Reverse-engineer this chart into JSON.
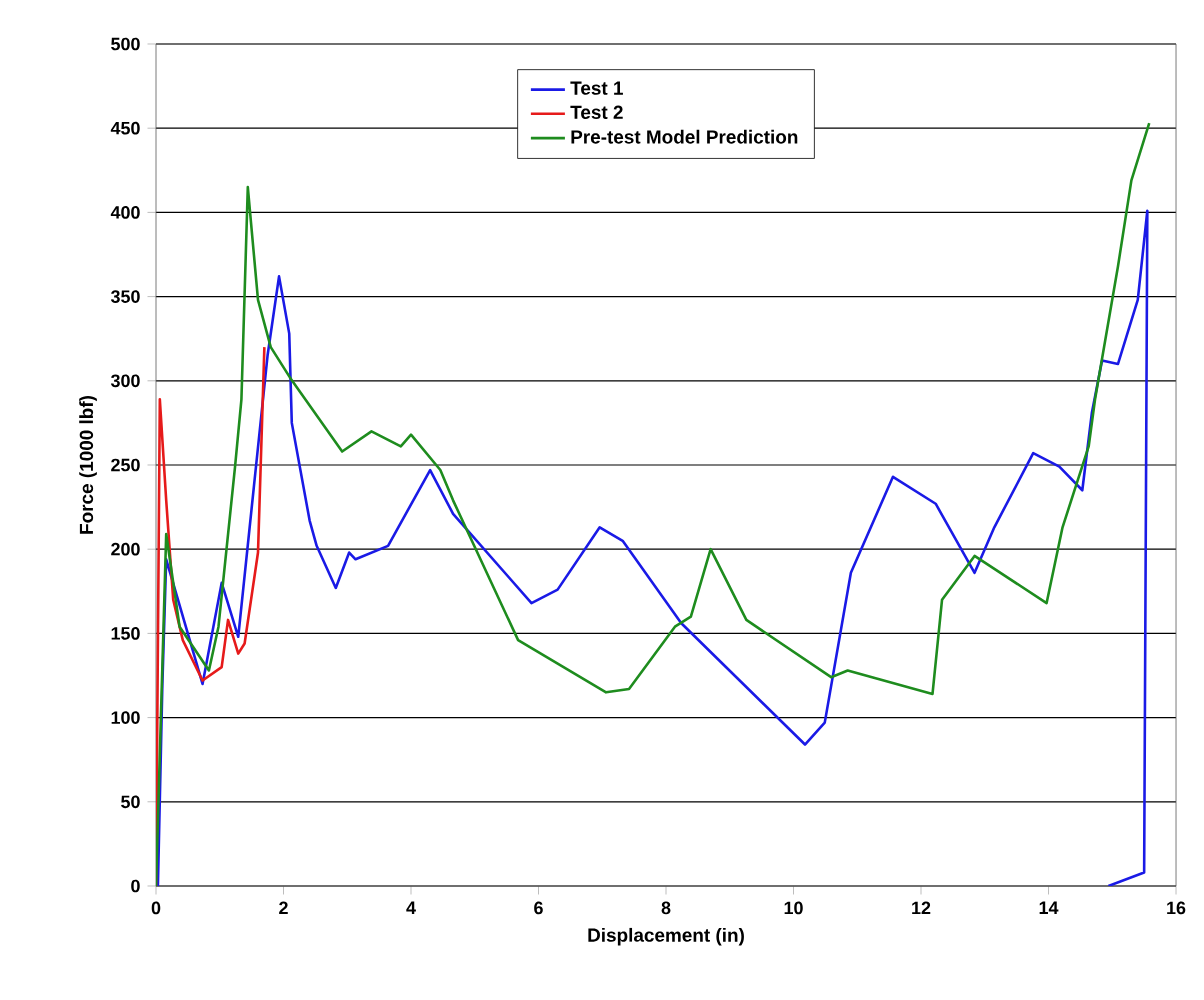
{
  "chart_data": {
    "type": "line",
    "xlabel": "Displacement (in)",
    "ylabel": "Force (1000 lbf)",
    "xlim": [
      0,
      16
    ],
    "xticks": [
      0,
      2,
      4,
      6,
      8,
      10,
      12,
      14,
      16
    ],
    "ylim": [
      0,
      500
    ],
    "yticks": [
      0,
      50,
      100,
      150,
      200,
      250,
      300,
      350,
      400,
      450,
      500
    ],
    "grid": "y",
    "legend": "top",
    "series": [
      {
        "name": "Test 1",
        "color": "#1a1ae6",
        "x": [
          0.03,
          0.1,
          0.16,
          0.73,
          1.03,
          1.29,
          1.75,
          1.93,
          2.09,
          2.13,
          2.41,
          2.52,
          2.82,
          3.03,
          3.13,
          3.64,
          4.3,
          4.66,
          5.89,
          6.3,
          6.96,
          7.32,
          8.24,
          10.18,
          10.49,
          10.9,
          11.56,
          12.23,
          12.84,
          13.15,
          13.76,
          14.17,
          14.53,
          14.68,
          14.84,
          15.09,
          15.4,
          15.55,
          15.5,
          14.94
        ],
        "values": [
          0,
          120,
          194,
          120,
          180,
          148,
          315,
          362,
          328,
          275,
          217,
          202,
          177,
          198,
          194,
          202,
          247,
          221,
          168,
          176,
          213,
          205,
          156,
          84,
          97,
          186,
          243,
          227,
          186,
          213,
          257,
          249,
          235,
          281,
          312,
          310,
          348,
          401,
          8,
          0
        ]
      },
      {
        "name": "Test 2",
        "color": "#e61a1a",
        "x": [
          0,
          0.06,
          0.16,
          0.27,
          0.42,
          0.73,
          1.03,
          1.13,
          1.29,
          1.39,
          1.6,
          1.7
        ],
        "values": [
          0,
          289,
          229,
          170,
          146,
          122,
          130,
          158,
          138,
          144,
          198,
          320
        ]
      },
      {
        "name": "Pre-test Model Prediction",
        "color": "#1e8c1e",
        "x": [
          0,
          0.16,
          0.37,
          0.83,
          0.98,
          1.24,
          1.34,
          1.44,
          1.6,
          1.8,
          2.1,
          2.92,
          3.38,
          3.84,
          4.0,
          4.46,
          4.66,
          5.68,
          7.06,
          7.42,
          8.14,
          8.39,
          8.7,
          9.26,
          10.59,
          10.85,
          12.18,
          12.33,
          12.84,
          13.97,
          14.22,
          14.63,
          14.73,
          15.09,
          15.3,
          15.58
        ],
        "values": [
          0,
          209,
          154,
          128,
          154,
          249,
          289,
          415,
          348,
          320,
          302,
          258,
          270,
          261,
          268,
          247,
          229,
          146,
          115,
          117,
          154,
          160,
          200,
          158,
          124,
          128,
          114,
          170,
          196,
          168,
          213,
          261,
          289,
          368,
          419,
          453
        ]
      }
    ]
  }
}
